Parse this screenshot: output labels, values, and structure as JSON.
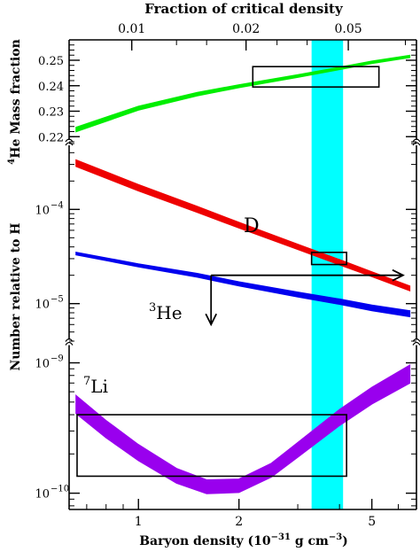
{
  "chart_data": {
    "type": "line",
    "x_scale": "log",
    "title": "Fraction of critical density",
    "xlabel": "Baryon density (10",
    "xlabel_exp": "−31",
    "xlabel_units": " g cm",
    "xlabel_units_exp": "−3",
    "xlabel_close": ")",
    "xlim": [
      0.62,
      6.8
    ],
    "x_ticks": [
      1,
      2,
      5
    ],
    "x_tick_labels": [
      "1",
      "2",
      "5"
    ],
    "top_ticks": [
      0.01,
      0.02,
      0.05
    ],
    "top_tick_labels": [
      "0.01",
      "0.02",
      "0.05"
    ],
    "top_tick_positions_baryon_density": [
      0.955,
      2.1,
      4.25
    ],
    "band": {
      "x_range": [
        3.3,
        4.1
      ],
      "color": "#00ffff"
    },
    "panels": [
      {
        "id": "he4",
        "ylabel_sup": "4",
        "ylabel": "He Mass fraction",
        "y_scale": "linear",
        "ylim": [
          0.218,
          0.258
        ],
        "y_ticks": [
          0.22,
          0.23,
          0.24,
          0.25
        ],
        "y_tick_labels": [
          "0.22",
          "0.23",
          "0.24",
          "0.25"
        ],
        "series": [
          {
            "color": "#00ee00",
            "x": [
              0.65,
              1.0,
              1.5,
              2.0,
              3.0,
              4.0,
              5.0,
              6.5
            ],
            "y": [
              0.2228,
              0.2312,
              0.2367,
              0.2398,
              0.2438,
              0.2468,
              0.2492,
              0.2515
            ],
            "width": [
              0.0018,
              0.0016,
              0.0014,
              0.0012,
              0.0011,
              0.001,
              0.001,
              0.001
            ]
          }
        ],
        "boxes": [
          {
            "x": [
              2.2,
              5.25
            ],
            "y": [
              0.2395,
              0.2475
            ]
          }
        ]
      },
      {
        "id": "dhe3",
        "ylabel": "Number relative to H",
        "y_scale": "log",
        "ylim": [
          4e-06,
          0.0005
        ],
        "y_ticks": [
          0.0001,
          1e-05
        ],
        "y_tick_labels": [
          {
            "base": "10",
            "exp": "−4"
          },
          {
            "base": "10",
            "exp": "−5"
          }
        ],
        "series": [
          {
            "label": "D",
            "color": "#ee0000",
            "x": [
              0.65,
              1.0,
              1.5,
              2.0,
              3.0,
              4.0,
              5.0,
              6.5
            ],
            "y": [
              0.00031,
              0.00017,
              0.0001,
              6.8e-05,
              4e-05,
              2.75e-05,
              2.05e-05,
              1.45e-05
            ],
            "width_factor": [
              1.18,
              1.17,
              1.16,
              1.15,
              1.14,
              1.14,
              1.13,
              1.13
            ]
          },
          {
            "label": "He",
            "label_sup": "3",
            "color": "#0000ee",
            "x": [
              0.65,
              1.0,
              1.5,
              2.0,
              3.0,
              4.0,
              5.0,
              6.5
            ],
            "y": [
              3.4e-05,
              2.55e-05,
              2e-05,
              1.62e-05,
              1.25e-05,
              1.05e-05,
              9e-06,
              7.8e-06
            ],
            "width_factor": [
              1.07,
              1.08,
              1.1,
              1.11,
              1.13,
              1.14,
              1.15,
              1.16
            ]
          }
        ],
        "boxes": [
          {
            "x": [
              3.3,
              4.2
            ],
            "y": [
              2.6e-05,
              3.5e-05
            ]
          }
        ],
        "arrows": [
          {
            "dir": "right",
            "x": [
              1.65,
              6.2
            ],
            "y": 2e-05
          },
          {
            "dir": "down",
            "x": 1.65,
            "y": [
              2e-05,
              6e-06
            ]
          }
        ]
      },
      {
        "id": "li7",
        "y_scale": "log",
        "ylim": [
          7.5e-11,
          1.4e-09
        ],
        "y_ticks": [
          1e-09,
          1e-10
        ],
        "y_tick_labels": [
          {
            "base": "10",
            "exp": "−9"
          },
          {
            "base": "10",
            "exp": "−10"
          }
        ],
        "series": [
          {
            "label": "Li",
            "label_sup": "7",
            "color": "#9900ee",
            "x": [
              0.65,
              0.8,
              1.0,
              1.3,
              1.6,
              2.0,
              2.5,
              3.0,
              4.0,
              5.0,
              6.5
            ],
            "y": [
              4.8e-10,
              3.1e-10,
              2.05e-10,
              1.36e-10,
              1.12e-10,
              1.14e-10,
              1.5e-10,
              2.15e-10,
              3.8e-10,
              5.6e-10,
              8.2e-10
            ],
            "width_factor": [
              1.38,
              1.36,
              1.33,
              1.3,
              1.28,
              1.27,
              1.28,
              1.3,
              1.33,
              1.35,
              1.38
            ]
          }
        ],
        "boxes": [
          {
            "x": [
              0.655,
              4.2
            ],
            "y": [
              1.35e-10,
              4e-10
            ]
          }
        ]
      }
    ]
  }
}
